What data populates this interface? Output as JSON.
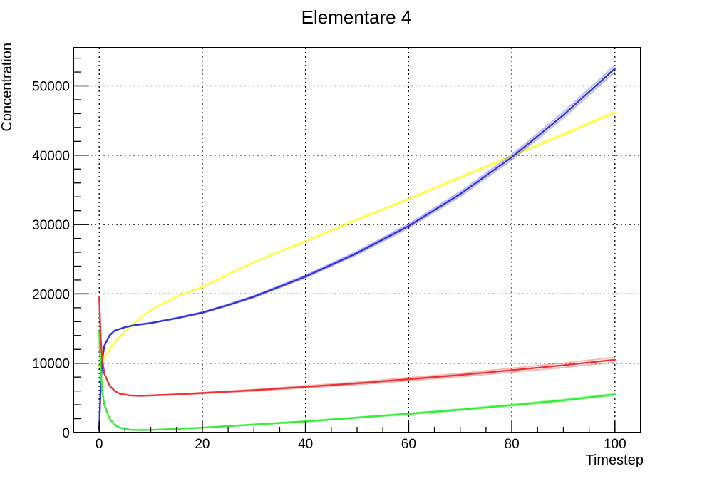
{
  "chart_data": {
    "type": "line",
    "title": "Elementare 4",
    "xlabel": "Timestep",
    "ylabel": "Concentration",
    "xlim": [
      -5,
      105
    ],
    "ylim": [
      0,
      55500
    ],
    "x_ticks": [
      0,
      20,
      40,
      60,
      80,
      100
    ],
    "y_ticks": [
      0,
      10000,
      20000,
      30000,
      40000,
      50000
    ],
    "x_tick_labels": [
      "0",
      "20",
      "40",
      "60",
      "80",
      "100"
    ],
    "y_tick_labels": [
      "0",
      "10000",
      "20000",
      "30000",
      "40000",
      "50000"
    ],
    "grid": true,
    "legend": "none",
    "series": [
      {
        "color": "#ffff33",
        "band": 150,
        "x": [
          0,
          0.5,
          1,
          2,
          3,
          5,
          7,
          10,
          15,
          20,
          25,
          30,
          40,
          50,
          60,
          70,
          80,
          90,
          100
        ],
        "y": [
          9500,
          10000,
          10800,
          12000,
          13000,
          14600,
          15900,
          17700,
          19600,
          21000,
          22800,
          24600,
          27600,
          30700,
          33700,
          36800,
          39900,
          43000,
          46200
        ]
      },
      {
        "color": "#3333dd",
        "band": 450,
        "x": [
          0,
          0.3,
          0.6,
          1,
          2,
          3,
          5,
          7,
          10,
          15,
          20,
          25,
          30,
          40,
          50,
          60,
          70,
          80,
          90,
          100
        ],
        "y": [
          500,
          7000,
          10500,
          12500,
          14000,
          14700,
          15200,
          15500,
          15800,
          16500,
          17300,
          18400,
          19600,
          22500,
          25900,
          29800,
          34400,
          39700,
          45800,
          52500
        ]
      },
      {
        "color": "#ee3333",
        "band": 350,
        "x": [
          0,
          0.3,
          0.6,
          1,
          2,
          3,
          4,
          6,
          8,
          10,
          15,
          20,
          30,
          40,
          50,
          60,
          70,
          80,
          90,
          100
        ],
        "y": [
          19500,
          13500,
          10500,
          8500,
          6800,
          6000,
          5600,
          5350,
          5300,
          5350,
          5500,
          5700,
          6100,
          6600,
          7100,
          7700,
          8300,
          9000,
          9700,
          10500
        ]
      },
      {
        "color": "#33ee33",
        "band": 150,
        "x": [
          0,
          0.3,
          0.6,
          1,
          2,
          3,
          4,
          6,
          8,
          10,
          15,
          20,
          30,
          40,
          50,
          60,
          70,
          80,
          90,
          100
        ],
        "y": [
          14500,
          9000,
          6000,
          4000,
          2000,
          1100,
          700,
          400,
          350,
          380,
          520,
          700,
          1150,
          1600,
          2150,
          2700,
          3300,
          3950,
          4650,
          5500
        ]
      }
    ]
  }
}
